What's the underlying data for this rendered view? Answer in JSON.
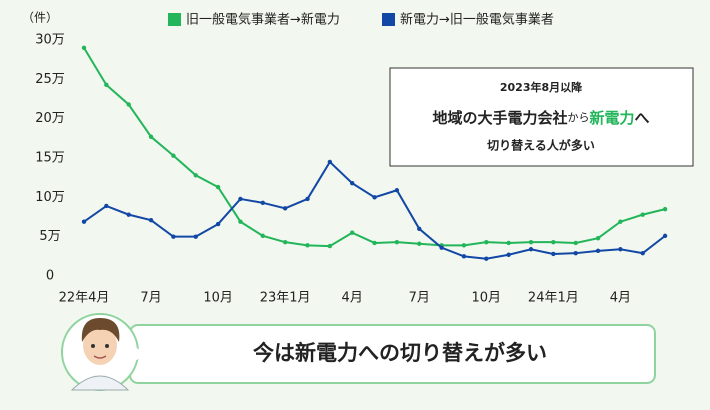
{
  "chart_data": {
    "type": "line",
    "y_unit_label": "（件）",
    "categories": [
      "22年4月",
      null,
      null,
      "7月",
      null,
      null,
      "10月",
      null,
      null,
      "23年1月",
      null,
      null,
      "4月",
      null,
      null,
      "7月",
      null,
      null,
      "10月",
      null,
      null,
      "24年1月",
      null,
      null,
      "4月",
      null,
      null
    ],
    "series": [
      {
        "name": "旧一般電気事業者→新電力",
        "color": "#22b559",
        "values": [
          290000,
          243000,
          218000,
          177000,
          153000,
          128000,
          113000,
          69000,
          51000,
          43000,
          39000,
          38000,
          55000,
          42000,
          43000,
          41000,
          39000,
          39000,
          43000,
          42000,
          43000,
          43000,
          42000,
          48000,
          69000,
          78000,
          85000
        ]
      },
      {
        "name": "新電力→旧一般電気事業者",
        "color": "#1347a6",
        "values": [
          69000,
          89000,
          78000,
          71000,
          50000,
          50000,
          66000,
          98000,
          93000,
          86000,
          98000,
          145000,
          118000,
          100000,
          109000,
          60000,
          36000,
          25000,
          22000,
          27000,
          34000,
          28000,
          29000,
          32000,
          34000,
          29000,
          51000
        ]
      }
    ],
    "ylim": [
      0,
      300000
    ],
    "yticks": [
      0,
      {
        "value": 50000,
        "label": "5万"
      },
      {
        "value": 100000,
        "label": "10万"
      },
      {
        "value": 150000,
        "label": "15万"
      },
      {
        "value": 200000,
        "label": "20万"
      },
      {
        "value": 250000,
        "label": "25万"
      },
      {
        "value": 300000,
        "label": "30万"
      }
    ],
    "grid": false,
    "annotation": {
      "date": "2023年8月以降",
      "line1": [
        "地域の大手電力会社",
        "から",
        "新電力",
        "へ"
      ],
      "line2": "切り替える人が多い"
    },
    "callout": "今は新電力への切り替えが多い"
  }
}
